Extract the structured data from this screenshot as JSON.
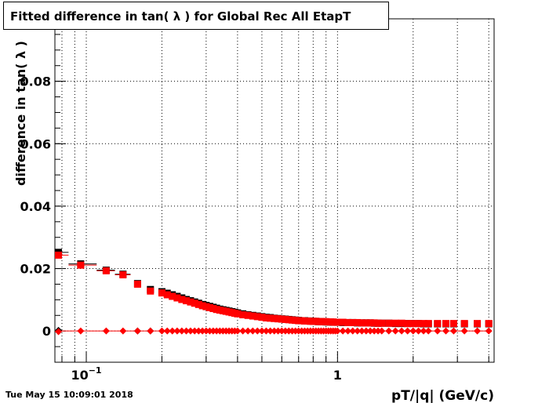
{
  "timestamp": "Tue May 15 10:09:01 2018",
  "chart_data": {
    "type": "scatter",
    "title": "Fitted difference in tan( λ ) for Global Rec All EtapT",
    "xlabel": "pT/|q| (GeV/c)",
    "ylabel": "difference in tan( λ )",
    "xscale": "log",
    "xlim": [
      0.075,
      4.2
    ],
    "ylim": [
      -0.01,
      0.1
    ],
    "grid": true,
    "x_ticklabels": [
      "10^-1",
      "1"
    ],
    "y_ticklabels": [
      "0",
      "0.02",
      "0.04",
      "0.06",
      "0.08"
    ],
    "y_ticks": [
      0,
      0.02,
      0.04,
      0.06,
      0.08
    ],
    "series": [
      {
        "color": "#000000",
        "marker": "square",
        "x": [
          0.0775,
          0.095,
          0.12,
          0.14,
          0.16,
          0.18,
          0.2,
          0.21,
          0.22,
          0.23,
          0.24,
          0.25,
          0.26,
          0.27,
          0.28,
          0.29,
          0.3,
          0.31,
          0.32,
          0.33,
          0.34,
          0.35,
          0.36,
          0.37,
          0.38,
          0.39,
          0.4,
          0.42,
          0.44,
          0.46,
          0.48,
          0.5,
          0.52,
          0.54,
          0.56,
          0.58,
          0.6,
          0.62,
          0.64,
          0.66,
          0.68,
          0.7,
          0.72,
          0.74,
          0.76,
          0.78,
          0.8,
          0.82,
          0.84,
          0.86,
          0.88,
          0.9,
          0.92,
          0.94,
          0.96,
          0.98,
          1.0,
          1.05,
          1.1,
          1.15,
          1.2,
          1.25,
          1.3,
          1.35,
          1.4,
          1.45,
          1.5,
          1.6,
          1.7,
          1.8,
          1.9,
          2.0,
          2.1,
          2.2,
          2.3,
          2.5,
          2.7,
          2.9,
          3.2,
          3.6,
          4.0
        ],
        "y": [
          0.0252,
          0.0215,
          0.0195,
          0.0182,
          0.0152,
          0.0133,
          0.0126,
          0.0121,
          0.0116,
          0.0111,
          0.0106,
          0.0101,
          0.0097,
          0.0093,
          0.0089,
          0.0085,
          0.0082,
          0.0079,
          0.0076,
          0.0073,
          0.007,
          0.0068,
          0.0066,
          0.0064,
          0.0062,
          0.006,
          0.0058,
          0.0055,
          0.0052,
          0.005,
          0.0048,
          0.0046,
          0.0044,
          0.0043,
          0.0041,
          0.004,
          0.0039,
          0.0038,
          0.0037,
          0.0036,
          0.0035,
          0.0034,
          0.0033,
          0.0033,
          0.0032,
          0.0032,
          0.0031,
          0.0031,
          0.003,
          0.003,
          0.003,
          0.0029,
          0.0029,
          0.0029,
          0.0028,
          0.0028,
          0.0028,
          0.0027,
          0.0027,
          0.0027,
          0.0026,
          0.0026,
          0.0026,
          0.0026,
          0.0025,
          0.0025,
          0.0025,
          0.0025,
          0.0024,
          0.0024,
          0.0024,
          0.0024,
          0.0024,
          0.0023,
          0.0023,
          0.0023,
          0.0023,
          0.0023,
          0.0023,
          0.0023,
          0.0023
        ]
      },
      {
        "color": "#ff0000",
        "marker": "square",
        "x": [
          0.0775,
          0.095,
          0.12,
          0.14,
          0.16,
          0.18,
          0.2,
          0.21,
          0.22,
          0.23,
          0.24,
          0.25,
          0.26,
          0.27,
          0.28,
          0.29,
          0.3,
          0.31,
          0.32,
          0.33,
          0.34,
          0.35,
          0.36,
          0.37,
          0.38,
          0.39,
          0.4,
          0.42,
          0.44,
          0.46,
          0.48,
          0.5,
          0.52,
          0.54,
          0.56,
          0.58,
          0.6,
          0.62,
          0.64,
          0.66,
          0.68,
          0.7,
          0.72,
          0.74,
          0.76,
          0.78,
          0.8,
          0.82,
          0.84,
          0.86,
          0.88,
          0.9,
          0.92,
          0.94,
          0.96,
          0.98,
          1.0,
          1.05,
          1.1,
          1.15,
          1.2,
          1.25,
          1.3,
          1.35,
          1.4,
          1.45,
          1.5,
          1.6,
          1.7,
          1.8,
          1.9,
          2.0,
          2.1,
          2.2,
          2.3,
          2.5,
          2.7,
          2.9,
          3.2,
          3.6,
          4.0
        ],
        "y": [
          0.0243,
          0.0211,
          0.0193,
          0.018,
          0.015,
          0.0128,
          0.0122,
          0.0116,
          0.0111,
          0.0106,
          0.0101,
          0.0097,
          0.0093,
          0.0089,
          0.0085,
          0.0081,
          0.0078,
          0.0075,
          0.0072,
          0.0069,
          0.0067,
          0.0065,
          0.0063,
          0.0061,
          0.0059,
          0.0057,
          0.0055,
          0.0052,
          0.005,
          0.0048,
          0.0046,
          0.0044,
          0.0042,
          0.0041,
          0.004,
          0.0039,
          0.0038,
          0.0037,
          0.0036,
          0.0035,
          0.0034,
          0.0033,
          0.0033,
          0.0032,
          0.0032,
          0.0031,
          0.0031,
          0.0031,
          0.003,
          0.003,
          0.003,
          0.003,
          0.0029,
          0.0029,
          0.0029,
          0.0028,
          0.0028,
          0.0028,
          0.0027,
          0.0027,
          0.0027,
          0.0026,
          0.0026,
          0.0026,
          0.0026,
          0.0025,
          0.0025,
          0.0025,
          0.0025,
          0.0025,
          0.0024,
          0.0024,
          0.0024,
          0.0024,
          0.0024,
          0.0024,
          0.0024,
          0.0024,
          0.0024,
          0.0024,
          0.0024
        ]
      },
      {
        "color": "#000000",
        "marker": "diamond",
        "x": [
          0.0775,
          0.16,
          0.18
        ],
        "y": [
          0.0002,
          0.0,
          0.0
        ]
      },
      {
        "color": "#ff0000",
        "marker": "diamond",
        "x": [
          0.0775,
          0.095,
          0.12,
          0.14,
          0.16,
          0.18,
          0.2,
          0.21,
          0.22,
          0.23,
          0.24,
          0.25,
          0.26,
          0.27,
          0.28,
          0.29,
          0.3,
          0.31,
          0.32,
          0.33,
          0.34,
          0.35,
          0.36,
          0.37,
          0.38,
          0.39,
          0.4,
          0.42,
          0.44,
          0.46,
          0.48,
          0.5,
          0.52,
          0.54,
          0.56,
          0.58,
          0.6,
          0.62,
          0.64,
          0.66,
          0.68,
          0.7,
          0.72,
          0.74,
          0.76,
          0.78,
          0.8,
          0.82,
          0.84,
          0.86,
          0.88,
          0.9,
          0.92,
          0.94,
          0.96,
          0.98,
          1.0,
          1.05,
          1.1,
          1.15,
          1.2,
          1.25,
          1.3,
          1.35,
          1.4,
          1.45,
          1.5,
          1.6,
          1.7,
          1.8,
          1.9,
          2.0,
          2.1,
          2.2,
          2.3,
          2.5,
          2.7,
          2.9,
          3.2,
          3.6,
          4.0
        ],
        "y": [
          -0.0002,
          0.0,
          0.0,
          0.0,
          0.0,
          0.0,
          0.0,
          0.0,
          0.0,
          0.0,
          0.0,
          0.0,
          0.0,
          0.0,
          0.0,
          0.0,
          0.0,
          0.0,
          0.0,
          0.0,
          0.0,
          0.0,
          0.0,
          0.0,
          0.0,
          0.0,
          0.0,
          0.0,
          0.0,
          0.0,
          0.0,
          0.0,
          0.0,
          0.0,
          0.0,
          0.0,
          0.0,
          0.0,
          0.0,
          0.0,
          0.0,
          0.0,
          0.0,
          0.0,
          0.0,
          0.0,
          0.0,
          0.0,
          0.0,
          0.0,
          0.0,
          0.0,
          0.0,
          0.0,
          0.0,
          0.0,
          0.0,
          0.0,
          0.0,
          0.0,
          0.0,
          0.0,
          0.0,
          0.0,
          0.0,
          0.0,
          0.0,
          0.0,
          0.0,
          0.0,
          0.0,
          0.0,
          0.0,
          0.0,
          0.0,
          0.0,
          0.0,
          0.0,
          0.0,
          0.0,
          0.0
        ]
      }
    ]
  }
}
